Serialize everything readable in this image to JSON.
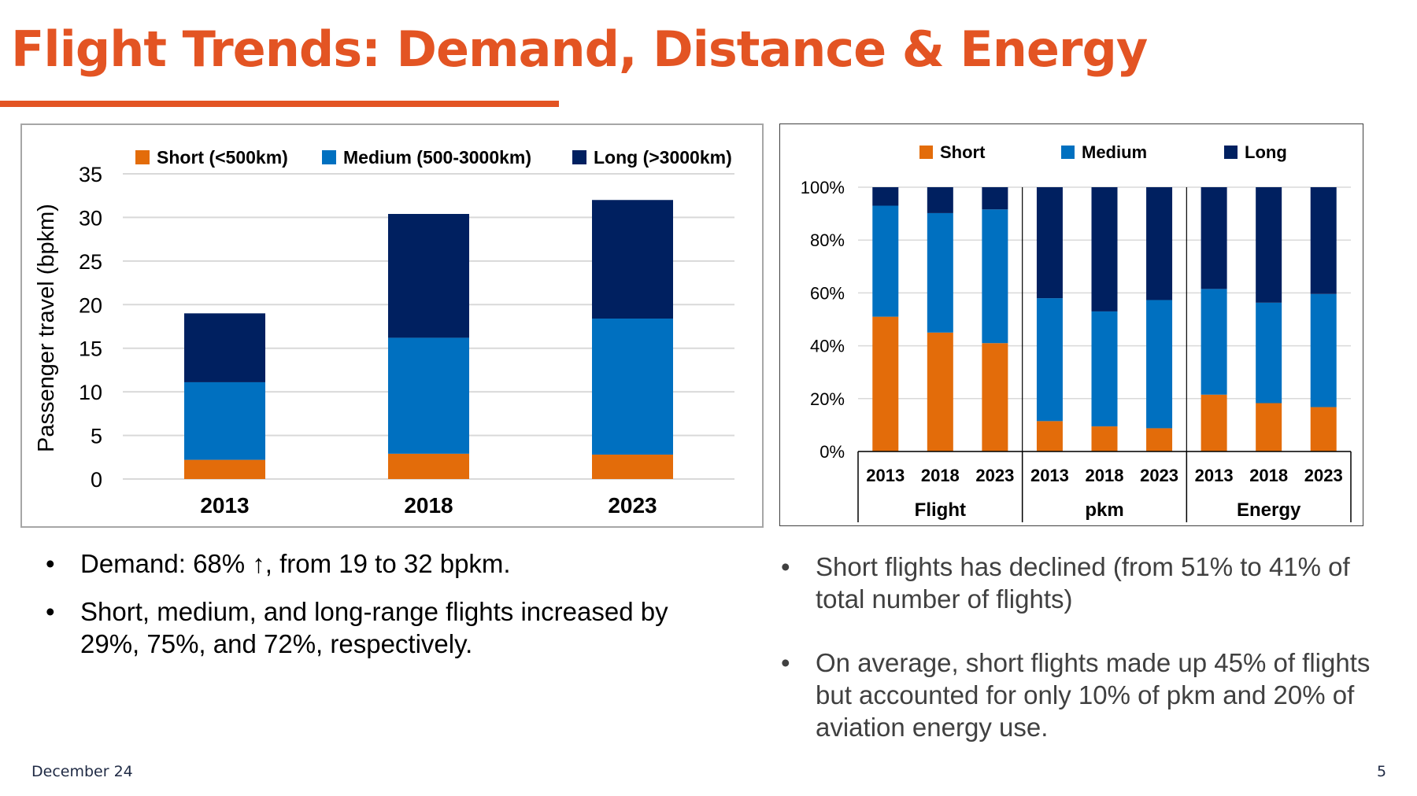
{
  "slide": {
    "title": "Flight Trends: Demand, Distance & Energy",
    "footer_date": "December 24",
    "page_number": "5",
    "accent_color": "#e35423"
  },
  "colors": {
    "short": "#e36c0a",
    "medium": "#0070c0",
    "long": "#002060"
  },
  "chart_data": [
    {
      "type": "bar",
      "stacked": true,
      "categories": [
        "2013",
        "2018",
        "2023"
      ],
      "series": [
        {
          "name": "Short (<500km)",
          "values": [
            2.2,
            2.9,
            2.8
          ]
        },
        {
          "name": "Medium (500-3000km)",
          "values": [
            8.9,
            13.3,
            15.6
          ]
        },
        {
          "name": "Long (>3000km)",
          "values": [
            7.9,
            14.2,
            13.6
          ]
        }
      ],
      "ylabel": "Passenger travel (bpkm)",
      "ylim": [
        0,
        35
      ],
      "yticks": [
        "0",
        "5",
        "10",
        "15",
        "20",
        "25",
        "30",
        "35"
      ],
      "grid": true,
      "legend": "top"
    },
    {
      "type": "bar",
      "stacked": true,
      "percent": true,
      "groups": [
        {
          "label": "Flight",
          "categories": [
            "2013",
            "2018",
            "2023"
          ]
        },
        {
          "label": "pkm",
          "categories": [
            "2013",
            "2018",
            "2023"
          ]
        },
        {
          "label": "Energy",
          "categories": [
            "2013",
            "2018",
            "2023"
          ]
        }
      ],
      "series": [
        {
          "name": "Short",
          "values": [
            51,
            45,
            41,
            11.5,
            9.5,
            8.8,
            21.5,
            18.3,
            16.8
          ]
        },
        {
          "name": "Medium",
          "values": [
            42,
            45.2,
            50.6,
            46.5,
            43.5,
            48.5,
            40,
            38,
            42.8
          ]
        },
        {
          "name": "Long",
          "values": [
            7,
            9.8,
            8.4,
            42,
            47,
            42.7,
            38.5,
            43.7,
            40.4
          ]
        }
      ],
      "ylim": [
        0,
        100
      ],
      "yticks": [
        "0%",
        "20%",
        "40%",
        "60%",
        "80%",
        "100%"
      ],
      "grid": true,
      "legend": "top"
    }
  ],
  "bullets_left": [
    "Demand: 68% ↑, from 19 to 32 bpkm.",
    "Short, medium, and long-range flights increased by 29%, 75%, and 72%, respectively."
  ],
  "bullets_right": [
    "Short flights has declined (from 51% to 41% of total number of flights)",
    "On average, short flights made up 45% of flights but accounted for only 10% of pkm and 20% of aviation energy use."
  ]
}
